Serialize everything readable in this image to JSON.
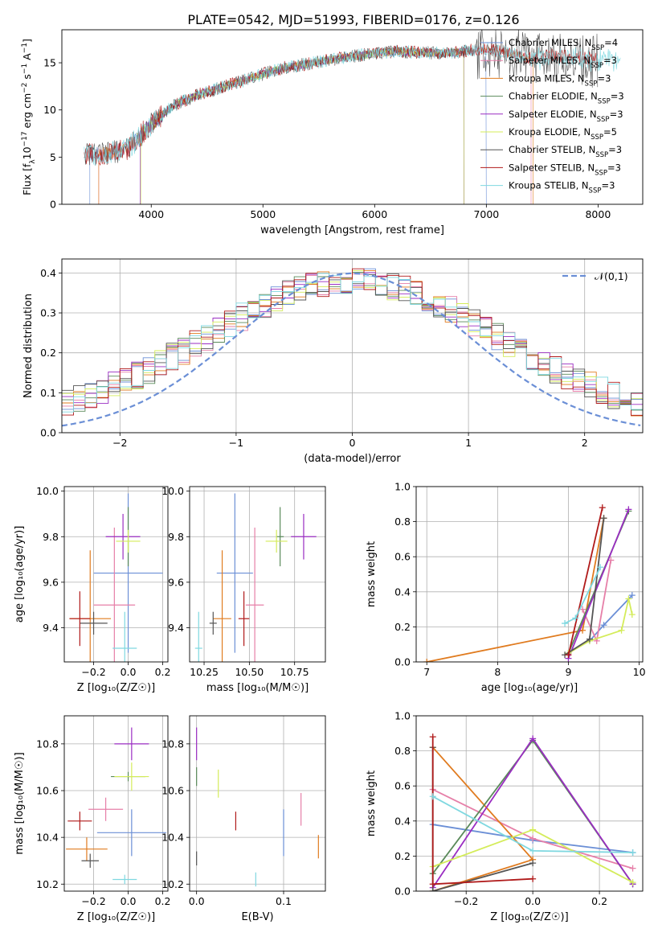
{
  "figure_title": "PLATE=0542, MJD=51993, FIBERID=0176, z=0.126",
  "colors": {
    "chabrier_miles": "#6b8fd6",
    "salpeter_miles": "#e67fa8",
    "kroupa_miles": "#e07b1f",
    "chabrier_elodie": "#5a8a5a",
    "salpeter_elodie": "#9a2dc2",
    "kroupa_elodie": "#d4ec5a",
    "chabrier_stelib": "#555555",
    "salpeter_stelib": "#b01a1a",
    "kroupa_stelib": "#7fd8e0"
  },
  "chart_data": [
    {
      "id": "spectrum",
      "type": "line",
      "xlabel": "wavelength [Angstrom, rest frame]",
      "ylabel_parts": [
        "Flux [f",
        "λ",
        "10",
        "−17",
        " erg cm",
        "−2",
        " s",
        "−1",
        " A",
        "−1",
        "]"
      ],
      "xlim": [
        3200,
        8400
      ],
      "ylim": [
        0,
        18.5
      ],
      "xticks": [
        4000,
        5000,
        6000,
        7000,
        8000
      ],
      "yticks": [
        0,
        5,
        10,
        15
      ],
      "grid": false,
      "legend": "upper right",
      "legend_entries": [
        {
          "key": "chabrier_miles",
          "base": "Chabrier MILES, N",
          "sub": "SSP",
          "tail": "=4"
        },
        {
          "key": "salpeter_miles",
          "base": "Salpeter MILES, N",
          "sub": "SSP",
          "tail": "=3"
        },
        {
          "key": "kroupa_miles",
          "base": "Kroupa MILES, N",
          "sub": "SSP",
          "tail": "=3"
        },
        {
          "key": "chabrier_elodie",
          "base": "Chabrier ELODIE, N",
          "sub": "SSP",
          "tail": "=3"
        },
        {
          "key": "salpeter_elodie",
          "base": "Salpeter ELODIE, N",
          "sub": "SSP",
          "tail": "=3"
        },
        {
          "key": "kroupa_elodie",
          "base": "Kroupa ELODIE, N",
          "sub": "SSP",
          "tail": "=5"
        },
        {
          "key": "chabrier_stelib",
          "base": "Chabrier STELIB, N",
          "sub": "SSP",
          "tail": "=3"
        },
        {
          "key": "salpeter_stelib",
          "base": "Salpeter STELIB, N",
          "sub": "SSP",
          "tail": "=3"
        },
        {
          "key": "kroupa_stelib",
          "base": "Kroupa STELIB, N",
          "sub": "SSP",
          "tail": "=3"
        }
      ],
      "continuum": {
        "x": [
          3400,
          3600,
          3800,
          4000,
          4200,
          4400,
          4600,
          4800,
          5000,
          5200,
          5400,
          5600,
          5800,
          6000,
          6200,
          6400,
          6600,
          6800,
          7000,
          7200,
          7400,
          7600,
          7800,
          8000,
          8200
        ],
        "y": [
          5.4,
          5.3,
          6.0,
          8.5,
          10.5,
          11.5,
          12.3,
          13.0,
          13.8,
          14.5,
          14.9,
          15.3,
          15.7,
          16.0,
          16.2,
          16.1,
          16.0,
          16.2,
          16.5,
          16.0,
          15.5,
          15.8,
          15.6,
          15.4,
          15.2
        ]
      },
      "model_ranges": [
        {
          "key": "chabrier_miles",
          "x": [
            3450,
            7000
          ]
        },
        {
          "key": "salpeter_miles",
          "x": [
            3530,
            7400
          ]
        },
        {
          "key": "kroupa_miles",
          "x": [
            3530,
            7420
          ]
        },
        {
          "key": "chabrier_elodie",
          "x": [
            3900,
            6800
          ]
        },
        {
          "key": "salpeter_elodie",
          "x": [
            3900,
            6800
          ]
        },
        {
          "key": "kroupa_elodie",
          "x": [
            3910,
            6800
          ]
        },
        {
          "key": "chabrier_stelib",
          "x": [
            3400,
            8000
          ]
        },
        {
          "key": "salpeter_stelib",
          "x": [
            3400,
            8000
          ]
        },
        {
          "key": "kroupa_stelib",
          "x": [
            3400,
            8200
          ]
        }
      ]
    },
    {
      "id": "residuals",
      "type": "histogram",
      "xlabel": "(data-model)/error",
      "ylabel": "Normed distribution",
      "xlim": [
        -2.5,
        2.5
      ],
      "ylim": [
        0,
        0.435
      ],
      "xticks": [
        -2,
        -1,
        0,
        1,
        2
      ],
      "yticks": [
        0.0,
        0.1,
        0.2,
        0.3,
        0.4
      ],
      "grid": true,
      "legend": "upper right",
      "legend_entries": [
        "𝒩(0,1)"
      ],
      "reference_curve": "normal(0,1)",
      "bin_width": 0.1
    },
    {
      "id": "age_vs_Z",
      "type": "errorbar",
      "xlabel": "Z [log₁₀(Z/Z☉)]",
      "ylabel": "age  [log₁₀(age/yr)]",
      "xlim": [
        -0.37,
        0.23
      ],
      "ylim": [
        9.25,
        10.02
      ],
      "xticks": [
        -0.2,
        0.0,
        0.2
      ],
      "yticks": [
        9.4,
        9.6,
        9.8,
        10.0
      ],
      "grid": true,
      "points": [
        {
          "key": "chabrier_miles",
          "x": 0.0,
          "xerr": 0.2,
          "y": 9.64,
          "yerr": 0.35
        },
        {
          "key": "salpeter_miles",
          "x": -0.08,
          "xerr": 0.12,
          "y": 9.5,
          "yerr": 0.34
        },
        {
          "key": "kroupa_miles",
          "x": -0.22,
          "xerr": 0.12,
          "y": 9.44,
          "yerr": 0.3
        },
        {
          "key": "chabrier_elodie",
          "x": 0.0,
          "xerr": 0.0,
          "y": 9.8,
          "yerr": 0.13
        },
        {
          "key": "salpeter_elodie",
          "x": -0.03,
          "xerr": 0.1,
          "y": 9.8,
          "yerr": 0.1
        },
        {
          "key": "kroupa_elodie",
          "x": 0.0,
          "xerr": 0.07,
          "y": 9.78,
          "yerr": 0.05
        },
        {
          "key": "chabrier_stelib",
          "x": -0.2,
          "xerr": 0.08,
          "y": 9.42,
          "yerr": 0.05
        },
        {
          "key": "salpeter_stelib",
          "x": -0.28,
          "xerr": 0.06,
          "y": 9.44,
          "yerr": 0.12
        },
        {
          "key": "kroupa_stelib",
          "x": -0.02,
          "xerr": 0.07,
          "y": 9.31,
          "yerr": 0.16
        }
      ]
    },
    {
      "id": "age_vs_mass",
      "type": "errorbar",
      "xlabel": "mass [log₁₀(M/M☉)]",
      "ylabel": "",
      "xlim": [
        10.17,
        10.92
      ],
      "ylim": [
        9.25,
        10.02
      ],
      "xticks": [
        10.25,
        10.5,
        10.75
      ],
      "yticks": [
        9.4,
        9.6,
        9.8,
        10.0
      ],
      "grid": true,
      "points": [
        {
          "key": "chabrier_miles",
          "x": 10.42,
          "xerr": 0.1,
          "y": 9.64,
          "yerr": 0.35
        },
        {
          "key": "salpeter_miles",
          "x": 10.53,
          "xerr": 0.05,
          "y": 9.5,
          "yerr": 0.34
        },
        {
          "key": "kroupa_miles",
          "x": 10.35,
          "xerr": 0.05,
          "y": 9.44,
          "yerr": 0.3
        },
        {
          "key": "chabrier_elodie",
          "x": 10.67,
          "xerr": 0.02,
          "y": 9.8,
          "yerr": 0.13
        },
        {
          "key": "salpeter_elodie",
          "x": 10.8,
          "xerr": 0.07,
          "y": 9.8,
          "yerr": 0.1
        },
        {
          "key": "kroupa_elodie",
          "x": 10.65,
          "xerr": 0.06,
          "y": 9.78,
          "yerr": 0.05
        },
        {
          "key": "chabrier_stelib",
          "x": 10.3,
          "xerr": 0.02,
          "y": 9.42,
          "yerr": 0.05
        },
        {
          "key": "salpeter_stelib",
          "x": 10.47,
          "xerr": 0.03,
          "y": 9.44,
          "yerr": 0.12
        },
        {
          "key": "kroupa_stelib",
          "x": 10.22,
          "xerr": 0.02,
          "y": 9.31,
          "yerr": 0.16
        }
      ]
    },
    {
      "id": "weight_vs_age",
      "type": "line",
      "xlabel": "age  [log₁₀(age/yr)]",
      "ylabel": "mass weight",
      "xlim": [
        6.85,
        10.05
      ],
      "ylim": [
        0,
        1.0
      ],
      "xticks": [
        7,
        8,
        9,
        10
      ],
      "yticks": [
        0.0,
        0.2,
        0.4,
        0.6,
        0.8,
        1.0
      ],
      "grid": true,
      "series": [
        {
          "key": "chabrier_miles",
          "x": [
            9.3,
            9.5,
            9.9
          ],
          "y": [
            0.12,
            0.21,
            0.38
          ]
        },
        {
          "key": "salpeter_miles",
          "x": [
            9.2,
            9.4,
            9.6
          ],
          "y": [
            0.3,
            0.12,
            0.58
          ]
        },
        {
          "key": "kroupa_miles",
          "x": [
            7.0,
            9.2,
            9.5
          ],
          "y": [
            0.0,
            0.18,
            0.82
          ]
        },
        {
          "key": "chabrier_elodie",
          "x": [
            9.0,
            9.85
          ],
          "y": [
            0.05,
            0.86
          ]
        },
        {
          "key": "salpeter_elodie",
          "x": [
            9.0,
            9.85
          ],
          "y": [
            0.02,
            0.87
          ]
        },
        {
          "key": "kroupa_elodie",
          "x": [
            9.0,
            9.3,
            9.75,
            9.85,
            9.9
          ],
          "y": [
            0.05,
            0.12,
            0.18,
            0.36,
            0.27
          ]
        },
        {
          "key": "chabrier_stelib",
          "x": [
            8.95,
            9.3,
            9.5
          ],
          "y": [
            0.04,
            0.13,
            0.82
          ]
        },
        {
          "key": "salpeter_stelib",
          "x": [
            9.0,
            9.48
          ],
          "y": [
            0.04,
            0.88
          ]
        },
        {
          "key": "kroupa_stelib",
          "x": [
            8.95,
            9.1,
            9.45
          ],
          "y": [
            0.22,
            0.25,
            0.54
          ]
        }
      ]
    },
    {
      "id": "mass_vs_Z",
      "type": "errorbar",
      "xlabel": "Z [log₁₀(Z/Z☉)]",
      "ylabel": "mass [log₁₀(M/M☉)]",
      "xlim": [
        -0.37,
        0.23
      ],
      "ylim": [
        10.17,
        10.92
      ],
      "xticks": [
        -0.2,
        0.0,
        0.2
      ],
      "yticks": [
        10.2,
        10.4,
        10.6,
        10.8
      ],
      "grid": true,
      "points": [
        {
          "key": "chabrier_miles",
          "x": 0.02,
          "xerr": 0.2,
          "y": 10.42,
          "yerr": 0.1
        },
        {
          "key": "salpeter_miles",
          "x": -0.13,
          "xerr": 0.1,
          "y": 10.52,
          "yerr": 0.05
        },
        {
          "key": "kroupa_miles",
          "x": -0.24,
          "xerr": 0.12,
          "y": 10.35,
          "yerr": 0.05
        },
        {
          "key": "chabrier_elodie",
          "x": 0.0,
          "xerr": 0.1,
          "y": 10.66,
          "yerr": 0.02
        },
        {
          "key": "salpeter_elodie",
          "x": 0.02,
          "xerr": 0.1,
          "y": 10.8,
          "yerr": 0.07
        },
        {
          "key": "kroupa_elodie",
          "x": 0.02,
          "xerr": 0.1,
          "y": 10.66,
          "yerr": 0.06
        },
        {
          "key": "chabrier_stelib",
          "x": -0.22,
          "xerr": 0.05,
          "y": 10.3,
          "yerr": 0.03
        },
        {
          "key": "salpeter_stelib",
          "x": -0.28,
          "xerr": 0.07,
          "y": 10.47,
          "yerr": 0.04
        },
        {
          "key": "kroupa_stelib",
          "x": -0.02,
          "xerr": 0.07,
          "y": 10.22,
          "yerr": 0.02
        }
      ]
    },
    {
      "id": "mass_vs_ebv",
      "type": "errorbar",
      "xlabel": "E(B-V)",
      "ylabel": "",
      "xlim": [
        -0.008,
        0.148
      ],
      "ylim": [
        10.17,
        10.92
      ],
      "xticks": [
        0.0,
        0.1
      ],
      "yticks": [
        10.2,
        10.4,
        10.6,
        10.8
      ],
      "grid": true,
      "points": [
        {
          "key": "chabrier_miles",
          "x": 0.1,
          "xerr": 0.0,
          "y": 10.42,
          "yerr": 0.1
        },
        {
          "key": "salpeter_miles",
          "x": 0.12,
          "xerr": 0.0,
          "y": 10.52,
          "yerr": 0.07
        },
        {
          "key": "kroupa_miles",
          "x": 0.14,
          "xerr": 0.0,
          "y": 10.36,
          "yerr": 0.05
        },
        {
          "key": "chabrier_elodie",
          "x": 0.0,
          "xerr": 0.0,
          "y": 10.66,
          "yerr": 0.04
        },
        {
          "key": "salpeter_elodie",
          "x": 0.0,
          "xerr": 0.0,
          "y": 10.8,
          "yerr": 0.07
        },
        {
          "key": "kroupa_elodie",
          "x": 0.025,
          "xerr": 0.0,
          "y": 10.63,
          "yerr": 0.06
        },
        {
          "key": "chabrier_stelib",
          "x": 0.0,
          "xerr": 0.0,
          "y": 10.31,
          "yerr": 0.03
        },
        {
          "key": "salpeter_stelib",
          "x": 0.045,
          "xerr": 0.0,
          "y": 10.47,
          "yerr": 0.04
        },
        {
          "key": "kroupa_stelib",
          "x": 0.068,
          "xerr": 0.0,
          "y": 10.22,
          "yerr": 0.03
        }
      ]
    },
    {
      "id": "weight_vs_Z",
      "type": "line",
      "xlabel": "Z [log₁₀(Z/Z☉)]",
      "ylabel": "mass weight",
      "xlim": [
        -0.35,
        0.33
      ],
      "ylim": [
        0,
        1.0
      ],
      "xticks": [
        -0.2,
        0.0,
        0.2
      ],
      "yticks": [
        0.0,
        0.2,
        0.4,
        0.6,
        0.8,
        1.0
      ],
      "grid": true,
      "series": [
        {
          "key": "chabrier_miles",
          "x": [
            -0.3,
            0.0,
            0.3
          ],
          "y": [
            0.38,
            0.29,
            0.22
          ]
        },
        {
          "key": "salpeter_miles",
          "x": [
            -0.3,
            0.0,
            0.3
          ],
          "y": [
            0.58,
            0.3,
            0.13
          ]
        },
        {
          "key": "kroupa_miles",
          "x": [
            -0.3,
            0.0,
            -0.3
          ],
          "y": [
            0.82,
            0.18,
            0.0
          ]
        },
        {
          "key": "chabrier_elodie",
          "x": [
            -0.3,
            0.0,
            0.3
          ],
          "y": [
            0.1,
            0.86,
            0.04
          ]
        },
        {
          "key": "salpeter_elodie",
          "x": [
            -0.3,
            0.0,
            0.3
          ],
          "y": [
            0.02,
            0.87,
            0.04
          ]
        },
        {
          "key": "kroupa_elodie",
          "x": [
            -0.3,
            0.0,
            0.3
          ],
          "y": [
            0.14,
            0.35,
            0.05
          ]
        },
        {
          "key": "chabrier_stelib",
          "x": [
            -0.3,
            -0.3,
            0.0
          ],
          "y": [
            0.82,
            0.0,
            0.16
          ]
        },
        {
          "key": "salpeter_stelib",
          "x": [
            -0.3,
            -0.3,
            0.0
          ],
          "y": [
            0.88,
            0.04,
            0.07
          ]
        },
        {
          "key": "kroupa_stelib",
          "x": [
            -0.3,
            0.0,
            0.3
          ],
          "y": [
            0.54,
            0.23,
            0.22
          ]
        }
      ]
    }
  ]
}
